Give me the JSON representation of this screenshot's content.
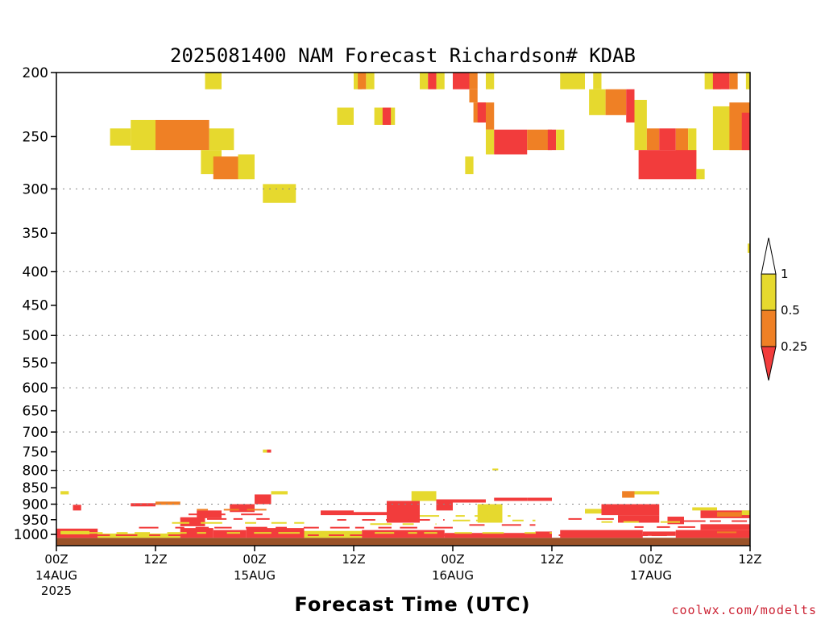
{
  "chart_data": {
    "type": "heatmap",
    "title": "2025081400 NAM Forecast Richardson# KDAB",
    "xlabel": "Forecast Time (UTC)",
    "credit": "coolwx.com/modelts",
    "y_axis": {
      "scale": "log",
      "inverted": true,
      "range": [
        200,
        1040
      ],
      "ticks": [
        200,
        250,
        300,
        350,
        400,
        450,
        500,
        550,
        600,
        650,
        700,
        750,
        800,
        850,
        900,
        950,
        1000
      ],
      "dotted_grid": [
        300,
        400,
        500,
        600,
        700,
        800,
        900
      ]
    },
    "x_axis": {
      "range_hours": [
        0,
        84
      ],
      "ticks": [
        {
          "hour": 0,
          "label": "00Z",
          "date": "14AUG",
          "year": "2025"
        },
        {
          "hour": 12,
          "label": "12Z",
          "date": "",
          "year": ""
        },
        {
          "hour": 24,
          "label": "00Z",
          "date": "15AUG",
          "year": ""
        },
        {
          "hour": 36,
          "label": "12Z",
          "date": "",
          "year": ""
        },
        {
          "hour": 48,
          "label": "00Z",
          "date": "16AUG",
          "year": ""
        },
        {
          "hour": 60,
          "label": "12Z",
          "date": "",
          "year": ""
        },
        {
          "hour": 72,
          "label": "00Z",
          "date": "17AUG",
          "year": ""
        },
        {
          "hour": 84,
          "label": "12Z",
          "date": "",
          "year": ""
        }
      ]
    },
    "legend": {
      "placement": "right",
      "levels": [
        "1",
        "0.5",
        "0.25"
      ],
      "colors": {
        "high": "#e6d92e",
        "mid": "#ef8025",
        "low": "#f23c3c"
      }
    },
    "colors": {
      "y": "#e6d92e",
      "o": "#ef8025",
      "r": "#f23c3c",
      "ground": "#9a5228"
    },
    "ground_level_hpa": 1012,
    "cells": [
      {
        "t": [
          18,
          20
        ],
        "p": [
          200,
          212
        ],
        "c": "y"
      },
      {
        "t": [
          6.5,
          9
        ],
        "p": [
          243,
          258
        ],
        "c": "y"
      },
      {
        "t": [
          9,
          12
        ],
        "p": [
          236,
          262
        ],
        "c": "y"
      },
      {
        "t": [
          12,
          18.5
        ],
        "p": [
          236,
          262
        ],
        "c": "o"
      },
      {
        "t": [
          18.5,
          21.5
        ],
        "p": [
          243,
          262
        ],
        "c": "y"
      },
      {
        "t": [
          17.5,
          20
        ],
        "p": [
          262,
          285
        ],
        "c": "y"
      },
      {
        "t": [
          19,
          22
        ],
        "p": [
          268,
          290
        ],
        "c": "o"
      },
      {
        "t": [
          22,
          24
        ],
        "p": [
          266,
          290
        ],
        "c": "y"
      },
      {
        "t": [
          25,
          29
        ],
        "p": [
          295,
          315
        ],
        "c": "y"
      },
      {
        "t": [
          34,
          36
        ],
        "p": [
          226,
          240
        ],
        "c": "y"
      },
      {
        "t": [
          36,
          37
        ],
        "p": [
          200,
          212
        ],
        "c": "y"
      },
      {
        "t": [
          36.5,
          37.5
        ],
        "p": [
          200,
          212
        ],
        "c": "o"
      },
      {
        "t": [
          37.5,
          38.5
        ],
        "p": [
          200,
          212
        ],
        "c": "y"
      },
      {
        "t": [
          38.5,
          41
        ],
        "p": [
          226,
          240
        ],
        "c": "y"
      },
      {
        "t": [
          39.5,
          40.5
        ],
        "p": [
          226,
          240
        ],
        "c": "r"
      },
      {
        "t": [
          44,
          45
        ],
        "p": [
          200,
          212
        ],
        "c": "y"
      },
      {
        "t": [
          45,
          46
        ],
        "p": [
          200,
          212
        ],
        "c": "r"
      },
      {
        "t": [
          46,
          47
        ],
        "p": [
          200,
          212
        ],
        "c": "y"
      },
      {
        "t": [
          48,
          50
        ],
        "p": [
          200,
          212
        ],
        "c": "r"
      },
      {
        "t": [
          50,
          51
        ],
        "p": [
          200,
          212
        ],
        "c": "o"
      },
      {
        "t": [
          52,
          53
        ],
        "p": [
          200,
          212
        ],
        "c": "y"
      },
      {
        "t": [
          50,
          51
        ],
        "p": [
          212,
          222
        ],
        "c": "o"
      },
      {
        "t": [
          50.5,
          52
        ],
        "p": [
          222,
          238
        ],
        "c": "o"
      },
      {
        "t": [
          51,
          52
        ],
        "p": [
          222,
          238
        ],
        "c": "r"
      },
      {
        "t": [
          52,
          53
        ],
        "p": [
          222,
          244
        ],
        "c": "o"
      },
      {
        "t": [
          52,
          53
        ],
        "p": [
          244,
          266
        ],
        "c": "y"
      },
      {
        "t": [
          53,
          57
        ],
        "p": [
          244,
          266
        ],
        "c": "r"
      },
      {
        "t": [
          57,
          60
        ],
        "p": [
          244,
          262
        ],
        "c": "o"
      },
      {
        "t": [
          59.5,
          60.5
        ],
        "p": [
          244,
          262
        ],
        "c": "r"
      },
      {
        "t": [
          60.5,
          61.5
        ],
        "p": [
          244,
          262
        ],
        "c": "y"
      },
      {
        "t": [
          49.5,
          50.5
        ],
        "p": [
          268,
          285
        ],
        "c": "y"
      },
      {
        "t": [
          61,
          64
        ],
        "p": [
          200,
          212
        ],
        "c": "y"
      },
      {
        "t": [
          65,
          66
        ],
        "p": [
          200,
          212
        ],
        "c": "y"
      },
      {
        "t": [
          64.5,
          66.5
        ],
        "p": [
          212,
          232
        ],
        "c": "y"
      },
      {
        "t": [
          66.5,
          69
        ],
        "p": [
          212,
          232
        ],
        "c": "o"
      },
      {
        "t": [
          69,
          70
        ],
        "p": [
          212,
          238
        ],
        "c": "r"
      },
      {
        "t": [
          70,
          71.5
        ],
        "p": [
          220,
          262
        ],
        "c": "y"
      },
      {
        "t": [
          71.5,
          73
        ],
        "p": [
          243,
          262
        ],
        "c": "o"
      },
      {
        "t": [
          73,
          75
        ],
        "p": [
          243,
          262
        ],
        "c": "r"
      },
      {
        "t": [
          75,
          76.5
        ],
        "p": [
          243,
          285
        ],
        "c": "o"
      },
      {
        "t": [
          76.5,
          77.5
        ],
        "p": [
          243,
          285
        ],
        "c": "y"
      },
      {
        "t": [
          70.5,
          72
        ],
        "p": [
          262,
          290
        ],
        "c": "r"
      },
      {
        "t": [
          72,
          77.5
        ],
        "p": [
          262,
          290
        ],
        "c": "r"
      },
      {
        "t": [
          77.5,
          78.5
        ],
        "p": [
          280,
          290
        ],
        "c": "y"
      },
      {
        "t": [
          78.5,
          80.5
        ],
        "p": [
          200,
          212
        ],
        "c": "y"
      },
      {
        "t": [
          79.5,
          81.5
        ],
        "p": [
          200,
          212
        ],
        "c": "r"
      },
      {
        "t": [
          81.5,
          82.5
        ],
        "p": [
          200,
          212
        ],
        "c": "o"
      },
      {
        "t": [
          83.5,
          84
        ],
        "p": [
          200,
          212
        ],
        "c": "y"
      },
      {
        "t": [
          79.5,
          83
        ],
        "p": [
          225,
          262
        ],
        "c": "y"
      },
      {
        "t": [
          81.5,
          84
        ],
        "p": [
          222,
          262
        ],
        "c": "o"
      },
      {
        "t": [
          83,
          84
        ],
        "p": [
          230,
          262
        ],
        "c": "r"
      },
      {
        "t": [
          83.7,
          84
        ],
        "p": [
          363,
          375
        ],
        "c": "y"
      },
      {
        "t": [
          25,
          25.5
        ],
        "p": [
          744,
          752
        ],
        "c": "y"
      },
      {
        "t": [
          25.5,
          26
        ],
        "p": [
          744,
          752
        ],
        "c": "r"
      },
      {
        "t": [
          52.8,
          53.5
        ],
        "p": [
          795,
          800
        ],
        "c": "y"
      },
      {
        "t": [
          0,
          5
        ],
        "p": [
          980,
          1012
        ],
        "c": "r"
      },
      {
        "t": [
          0.5,
          4
        ],
        "p": [
          988,
          1000
        ],
        "c": "y"
      },
      {
        "t": [
          5,
          15
        ],
        "p": [
          997,
          1012
        ],
        "c": "y"
      },
      {
        "t": [
          15,
          19
        ],
        "p": [
          978,
          1012
        ],
        "c": "r"
      },
      {
        "t": [
          19,
          23
        ],
        "p": [
          985,
          1012
        ],
        "c": "r"
      },
      {
        "t": [
          23,
          30
        ],
        "p": [
          978,
          1012
        ],
        "c": "r"
      },
      {
        "t": [
          30,
          37
        ],
        "p": [
          988,
          1012
        ],
        "c": "y"
      },
      {
        "t": [
          37,
          47
        ],
        "p": [
          985,
          1012
        ],
        "c": "r"
      },
      {
        "t": [
          47,
          58
        ],
        "p": [
          995,
          1012
        ],
        "c": "r"
      },
      {
        "t": [
          58,
          60
        ],
        "p": [
          990,
          1012
        ],
        "c": "r"
      },
      {
        "t": [
          61,
          71
        ],
        "p": [
          985,
          1012
        ],
        "c": "r"
      },
      {
        "t": [
          71,
          75
        ],
        "p": [
          990,
          1005
        ],
        "c": "r"
      },
      {
        "t": [
          75,
          84
        ],
        "p": [
          985,
          1012
        ],
        "c": "r"
      },
      {
        "t": [
          15,
          18
        ],
        "p": [
          942,
          972
        ],
        "c": "r"
      },
      {
        "t": [
          17,
          20
        ],
        "p": [
          920,
          945
        ],
        "c": "r"
      },
      {
        "t": [
          21,
          24
        ],
        "p": [
          900,
          925
        ],
        "c": "r"
      },
      {
        "t": [
          24,
          26
        ],
        "p": [
          870,
          900
        ],
        "c": "r"
      },
      {
        "t": [
          26,
          28
        ],
        "p": [
          860,
          870
        ],
        "c": "y"
      },
      {
        "t": [
          9,
          12
        ],
        "p": [
          897,
          907
        ],
        "c": "r"
      },
      {
        "t": [
          12,
          15
        ],
        "p": [
          892,
          902
        ],
        "c": "o"
      },
      {
        "t": [
          2,
          3
        ],
        "p": [
          902,
          920
        ],
        "c": "r"
      },
      {
        "t": [
          0.5,
          1.5
        ],
        "p": [
          860,
          870
        ],
        "c": "y"
      },
      {
        "t": [
          32,
          36
        ],
        "p": [
          920,
          935
        ],
        "c": "r"
      },
      {
        "t": [
          36,
          40
        ],
        "p": [
          925,
          935
        ],
        "c": "r"
      },
      {
        "t": [
          40,
          44
        ],
        "p": [
          890,
          960
        ],
        "c": "r"
      },
      {
        "t": [
          43,
          46
        ],
        "p": [
          860,
          890
        ],
        "c": "y"
      },
      {
        "t": [
          46,
          48
        ],
        "p": [
          885,
          920
        ],
        "c": "r"
      },
      {
        "t": [
          48,
          52
        ],
        "p": [
          885,
          895
        ],
        "c": "r"
      },
      {
        "t": [
          51,
          54
        ],
        "p": [
          900,
          960
        ],
        "c": "y"
      },
      {
        "t": [
          53,
          57
        ],
        "p": [
          880,
          890
        ],
        "c": "r"
      },
      {
        "t": [
          57,
          60
        ],
        "p": [
          880,
          890
        ],
        "c": "r"
      },
      {
        "t": [
          64,
          68
        ],
        "p": [
          915,
          930
        ],
        "c": "y"
      },
      {
        "t": [
          66,
          73
        ],
        "p": [
          900,
          935
        ],
        "c": "r"
      },
      {
        "t": [
          68,
          73
        ],
        "p": [
          935,
          960
        ],
        "c": "r"
      },
      {
        "t": [
          68.5,
          70
        ],
        "p": [
          860,
          880
        ],
        "c": "o"
      },
      {
        "t": [
          70,
          73
        ],
        "p": [
          860,
          870
        ],
        "c": "y"
      },
      {
        "t": [
          77,
          80
        ],
        "p": [
          910,
          920
        ],
        "c": "y"
      },
      {
        "t": [
          78,
          84
        ],
        "p": [
          920,
          945
        ],
        "c": "r"
      },
      {
        "t": [
          80,
          83
        ],
        "p": [
          925,
          940
        ],
        "c": "o"
      },
      {
        "t": [
          83,
          84
        ],
        "p": [
          920,
          935
        ],
        "c": "y"
      },
      {
        "t": [
          74,
          76
        ],
        "p": [
          940,
          965
        ],
        "c": "r"
      },
      {
        "t": [
          78,
          84
        ],
        "p": [
          965,
          985
        ],
        "c": "r"
      }
    ],
    "streaks": [
      {
        "t": [
          0,
          84
        ],
        "p": [
          1000,
          1004
        ],
        "c": "r",
        "gap": 1.2
      },
      {
        "t": [
          3,
          60
        ],
        "p": [
          992,
          994
        ],
        "c": "y",
        "gap": 2.1
      },
      {
        "t": [
          10,
          48
        ],
        "p": [
          974,
          977
        ],
        "c": "r",
        "gap": 1.7
      },
      {
        "t": [
          14,
          30
        ],
        "p": [
          958,
          961
        ],
        "c": "y",
        "gap": 2.3
      },
      {
        "t": [
          15,
          26
        ],
        "p": [
          945,
          948
        ],
        "c": "r",
        "gap": 1.4
      },
      {
        "t": [
          16,
          25
        ],
        "p": [
          930,
          933
        ],
        "c": "r",
        "gap": 1.9
      },
      {
        "t": [
          17,
          26
        ],
        "p": [
          915,
          918
        ],
        "c": "o",
        "gap": 2.4
      },
      {
        "t": [
          34,
          47
        ],
        "p": [
          948,
          951
        ],
        "c": "r",
        "gap": 1.6
      },
      {
        "t": [
          38,
          46
        ],
        "p": [
          962,
          965
        ],
        "c": "y",
        "gap": 2.2
      },
      {
        "t": [
          44,
          55
        ],
        "p": [
          935,
          938
        ],
        "c": "y",
        "gap": 2.0
      },
      {
        "t": [
          48,
          58
        ],
        "p": [
          950,
          953
        ],
        "c": "y",
        "gap": 1.8
      },
      {
        "t": [
          50,
          58
        ],
        "p": [
          965,
          968
        ],
        "c": "r",
        "gap": 2.6
      },
      {
        "t": [
          62,
          72
        ],
        "p": [
          945,
          948
        ],
        "c": "r",
        "gap": 1.5
      },
      {
        "t": [
          66,
          76
        ],
        "p": [
          955,
          958
        ],
        "c": "y",
        "gap": 2.2
      },
      {
        "t": [
          70,
          80
        ],
        "p": [
          972,
          975
        ],
        "c": "r",
        "gap": 1.6
      },
      {
        "t": [
          76,
          84
        ],
        "p": [
          952,
          955
        ],
        "c": "r",
        "gap": 1.3
      },
      {
        "t": [
          80,
          84
        ],
        "p": [
          990,
          994
        ],
        "c": "o",
        "gap": 3.0
      }
    ]
  }
}
